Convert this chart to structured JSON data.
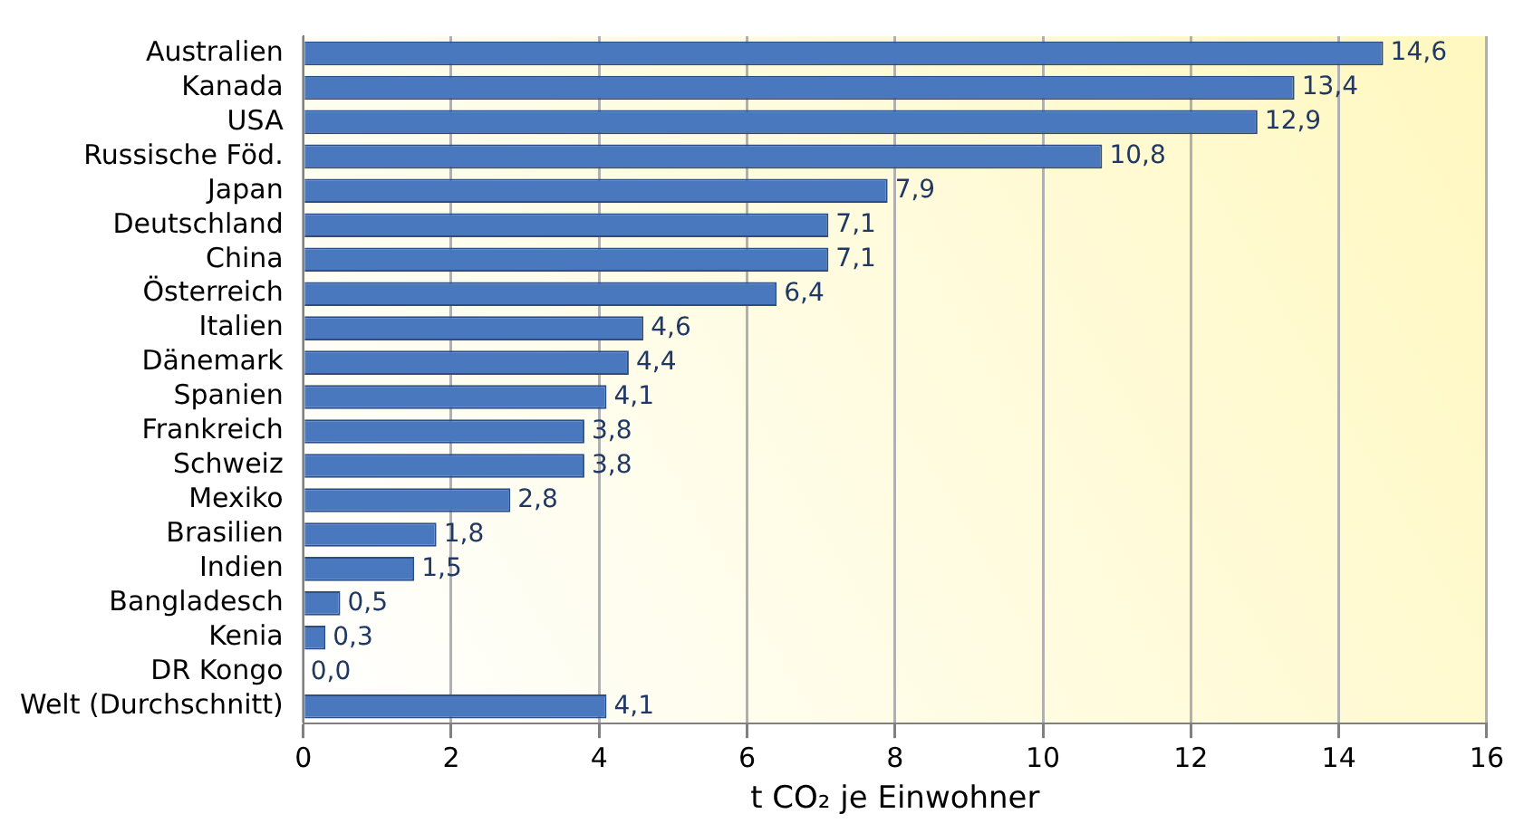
{
  "chart_data": {
    "type": "bar",
    "orientation": "horizontal",
    "xlabel": "t CO₂ je Einwohner",
    "categories": [
      "Australien",
      "Kanada",
      "USA",
      "Russische Föd.",
      "Japan",
      "Deutschland",
      "China",
      "Österreich",
      "Italien",
      "Dänemark",
      "Spanien",
      "Frankreich",
      "Schweiz",
      "Mexiko",
      "Brasilien",
      "Indien",
      "Bangladesch",
      "Kenia",
      "DR Kongo",
      "Welt (Durchschnitt)"
    ],
    "values": [
      14.6,
      13.4,
      12.9,
      10.8,
      7.9,
      7.1,
      7.1,
      6.4,
      4.6,
      4.4,
      4.1,
      3.8,
      3.8,
      2.8,
      1.8,
      1.5,
      0.5,
      0.3,
      0.0,
      4.1
    ],
    "value_labels": [
      "14,6",
      "13,4",
      "12,9",
      "10,8",
      "7,9",
      "7,1",
      "7,1",
      "6,4",
      "4,6",
      "4,4",
      "4,1",
      "3,8",
      "3,8",
      "2,8",
      "1,8",
      "1,5",
      "0,5",
      "0,3",
      "0,0",
      "4,1"
    ],
    "color": "#4a78be",
    "xlim": [
      0,
      16
    ],
    "xticks": [
      0,
      2,
      4,
      6,
      8,
      10,
      12,
      14,
      16
    ],
    "grid": "x",
    "legend": false
  }
}
